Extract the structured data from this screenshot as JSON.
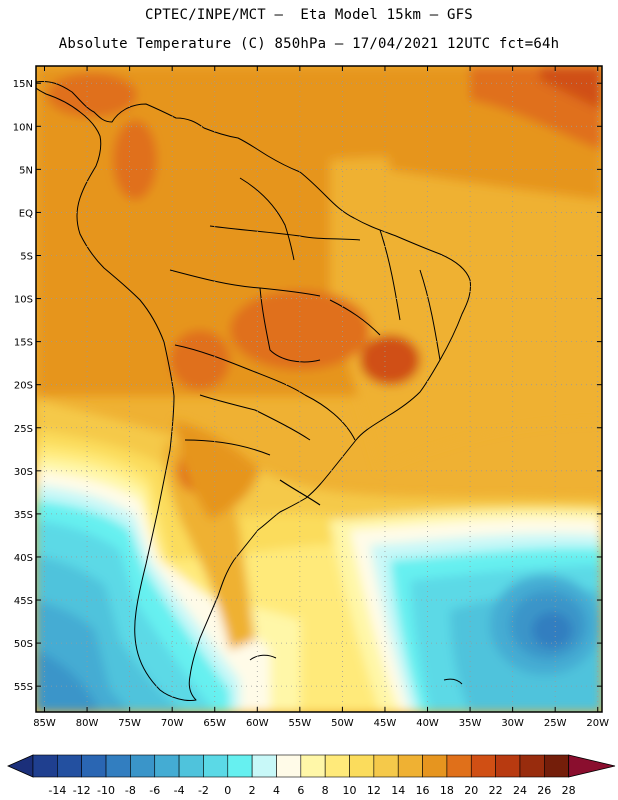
{
  "header": {
    "line1": "CPTEC/INPE/MCT –  Eta Model 15km – GFS",
    "line2": "Absolute Temperature (C) 850hPa – 17/04/2021 12UTC fct=64h"
  },
  "map": {
    "lon_range": [
      -86,
      -19.5
    ],
    "lat_range": [
      -58,
      17
    ],
    "lon_ticks": [
      "85W",
      "80W",
      "75W",
      "70W",
      "65W",
      "60W",
      "55W",
      "50W",
      "45W",
      "40W",
      "35W",
      "30W",
      "25W",
      "20W"
    ],
    "lon_values": [
      -85,
      -80,
      -75,
      -70,
      -65,
      -60,
      -55,
      -50,
      -45,
      -40,
      -35,
      -30,
      -25,
      -20
    ],
    "lat_ticks": [
      "15N",
      "10N",
      "5N",
      "EQ",
      "5S",
      "10S",
      "15S",
      "20S",
      "25S",
      "30S",
      "35S",
      "40S",
      "45S",
      "50S",
      "55S"
    ],
    "lat_values": [
      15,
      10,
      5,
      0,
      -5,
      -10,
      -15,
      -20,
      -25,
      -30,
      -35,
      -40,
      -45,
      -50,
      -55
    ],
    "gridlines": true
  },
  "colorbar": {
    "labels": [
      "-14",
      "-12",
      "-10",
      "-8",
      "-6",
      "-4",
      "-2",
      "0",
      "2",
      "4",
      "6",
      "8",
      "10",
      "12",
      "14",
      "16",
      "18",
      "20",
      "22",
      "24",
      "26",
      "28"
    ],
    "colors": [
      "#1f3f8f",
      "#2350a0",
      "#2a66b3",
      "#327ec0",
      "#3a95c9",
      "#44acd3",
      "#4fc3dc",
      "#5bd9e6",
      "#66f0f0",
      "#c8f8f8",
      "#fffbe8",
      "#fff7a8",
      "#ffea7a",
      "#fbdc5c",
      "#f5c94a",
      "#efb133",
      "#e6951f",
      "#e0701a",
      "#d04f14",
      "#b83a10",
      "#982c0d",
      "#741e0a",
      "#8a0e2e"
    ],
    "under_color": "#1b2f7a",
    "over_color": "#8a0e2e"
  }
}
